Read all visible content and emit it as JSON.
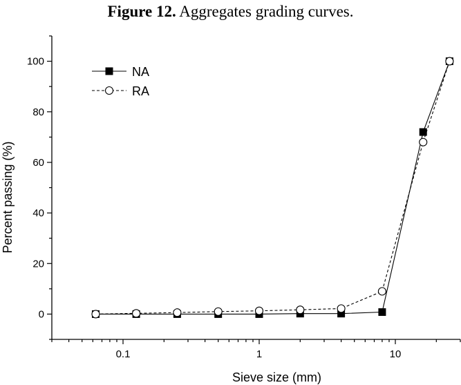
{
  "caption": {
    "label": "Figure 12.",
    "text": " Aggregates grading curves."
  },
  "chart_data": {
    "type": "line",
    "title": "",
    "xlabel": "Sieve size (mm)",
    "ylabel": "Percent passing (%)",
    "x_scale": "log",
    "xlim": [
      0.03,
      30
    ],
    "ylim": [
      -10,
      110
    ],
    "x_ticks": [
      {
        "value": 0.1,
        "label": "0.1"
      },
      {
        "value": 1,
        "label": "1"
      },
      {
        "value": 10,
        "label": "10"
      }
    ],
    "y_ticks": [
      {
        "value": 0,
        "label": "0"
      },
      {
        "value": 20,
        "label": "20"
      },
      {
        "value": 40,
        "label": "40"
      },
      {
        "value": 60,
        "label": "60"
      },
      {
        "value": 80,
        "label": "80"
      },
      {
        "value": 100,
        "label": "100"
      }
    ],
    "legend_position": "top-left",
    "series": [
      {
        "name": "NA",
        "marker": "filled-square",
        "line_style": "solid",
        "color": "#000000",
        "points": [
          [
            0.063,
            0
          ],
          [
            0.125,
            0
          ],
          [
            0.25,
            0
          ],
          [
            0.5,
            0
          ],
          [
            1,
            0
          ],
          [
            2,
            0.2
          ],
          [
            4,
            0.2
          ],
          [
            8,
            0.8
          ],
          [
            16,
            72
          ],
          [
            25,
            100
          ]
        ]
      },
      {
        "name": "RA",
        "marker": "open-circle",
        "line_style": "dashed",
        "color": "#000000",
        "points": [
          [
            0.063,
            0
          ],
          [
            0.125,
            0.3
          ],
          [
            0.25,
            0.6
          ],
          [
            0.5,
            1.0
          ],
          [
            1,
            1.3
          ],
          [
            2,
            1.7
          ],
          [
            4,
            2.2
          ],
          [
            8,
            9
          ],
          [
            16,
            68
          ],
          [
            25,
            100
          ]
        ]
      }
    ]
  }
}
